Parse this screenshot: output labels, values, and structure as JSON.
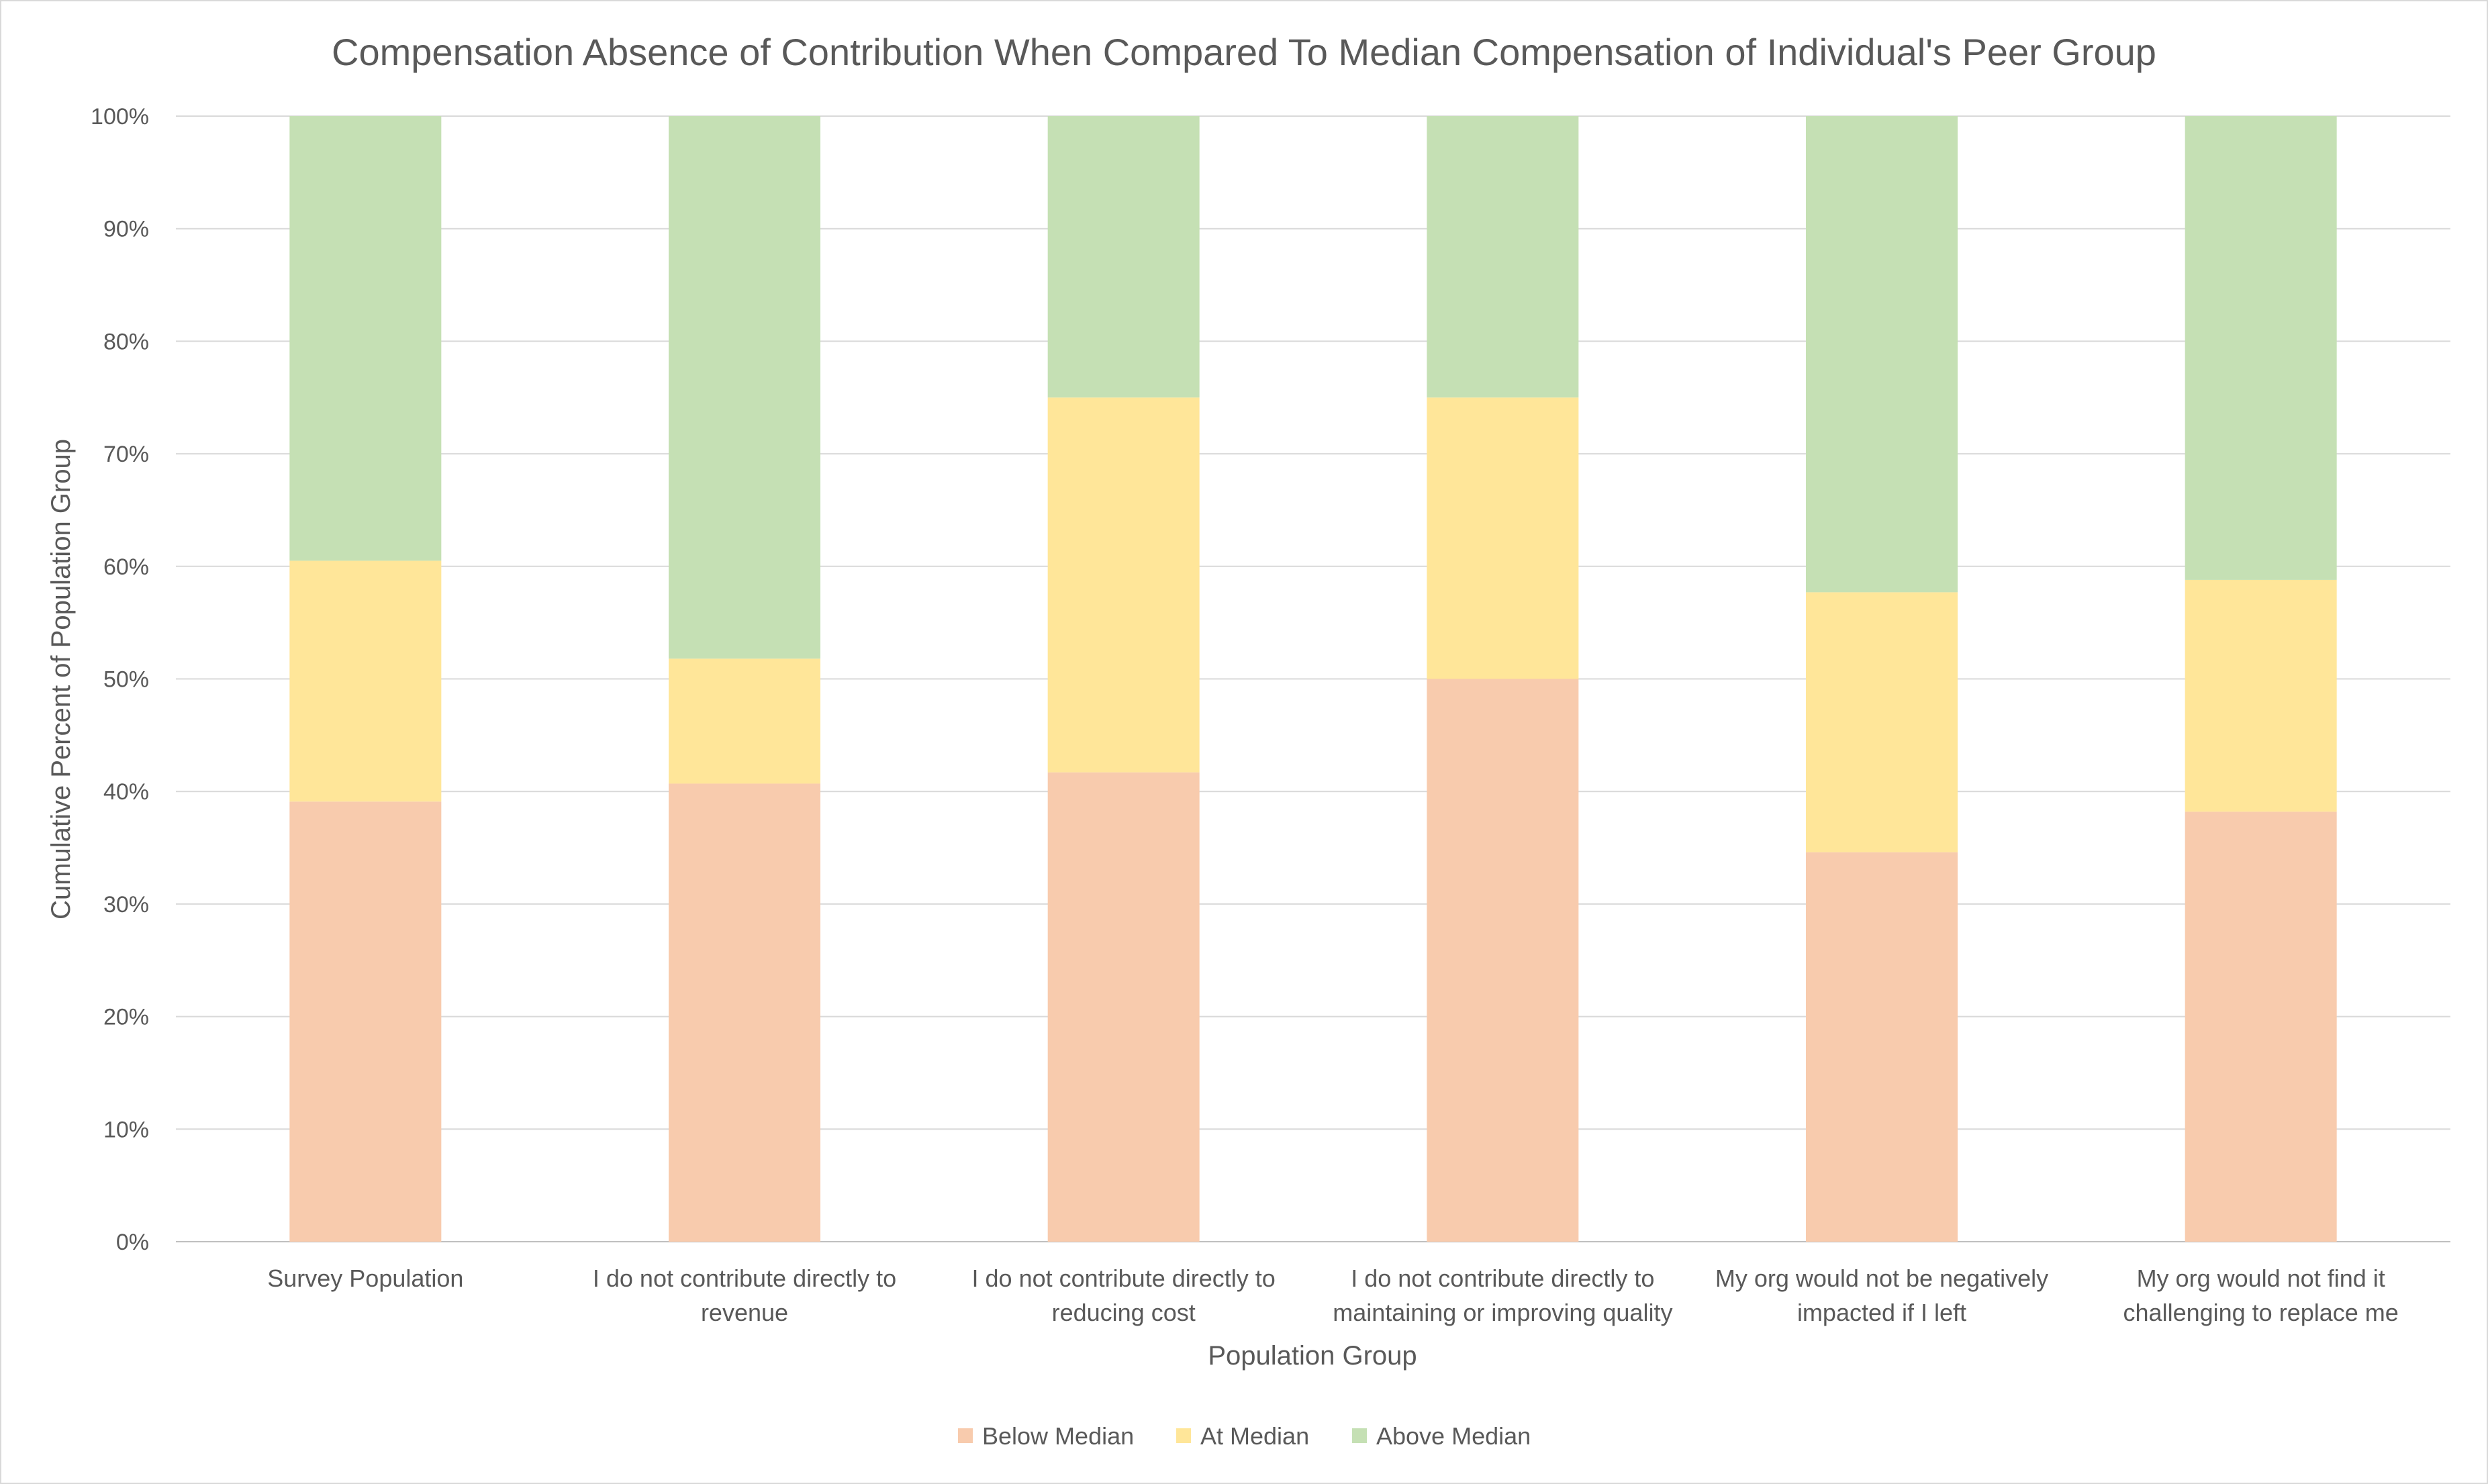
{
  "chart_data": {
    "type": "bar",
    "stacked": true,
    "title": "Compensation Absence of Contribution When Compared To Median Compensation of Individual's Peer Group",
    "xlabel": "Population Group",
    "ylabel": "Cumulative Percent of Population Group",
    "ylim": [
      0,
      100
    ],
    "yticks": [
      "0%",
      "10%",
      "20%",
      "30%",
      "40%",
      "50%",
      "60%",
      "70%",
      "80%",
      "90%",
      "100%"
    ],
    "grid": true,
    "legend_position": "bottom",
    "categories": [
      [
        "Survey Population"
      ],
      [
        "I do not contribute directly to",
        "revenue"
      ],
      [
        "I do not contribute directly to",
        "reducing cost"
      ],
      [
        "I do not contribute directly to",
        "maintaining or improving quality"
      ],
      [
        "My org would not be negatively",
        "impacted if I left"
      ],
      [
        "My org would not find it",
        "challenging to replace me"
      ]
    ],
    "series": [
      {
        "name": "Below Median",
        "color": "#f8cbad",
        "values": [
          39.1,
          40.7,
          41.7,
          50.0,
          34.6,
          38.2
        ]
      },
      {
        "name": "At Median",
        "color": "#ffe699",
        "values": [
          21.4,
          11.1,
          33.3,
          25.0,
          23.1,
          20.6
        ]
      },
      {
        "name": "Above Median",
        "color": "#c5e0b4",
        "values": [
          39.5,
          48.2,
          25.0,
          25.0,
          42.3,
          41.2
        ]
      }
    ]
  }
}
